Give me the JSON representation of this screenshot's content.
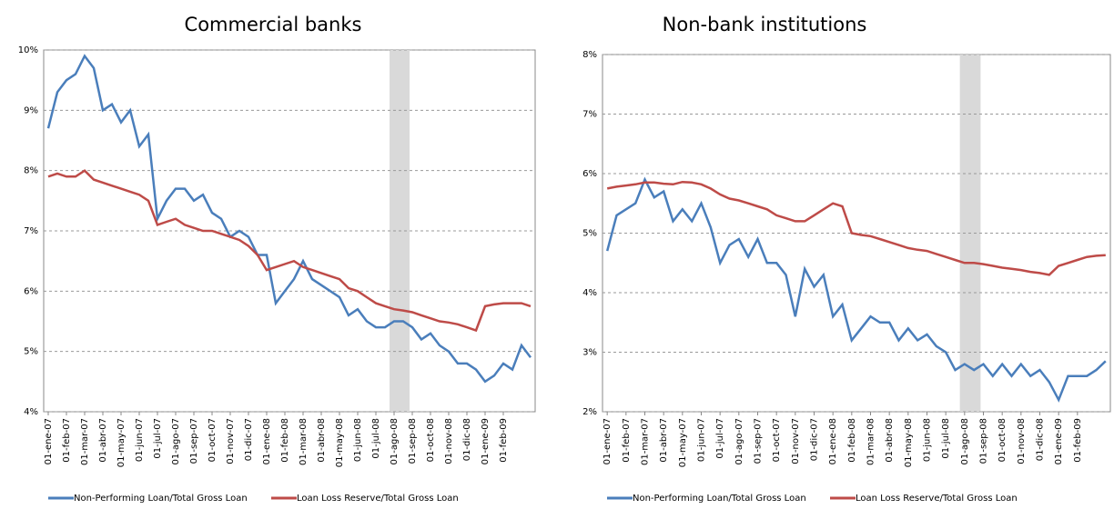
{
  "chart_data": [
    {
      "type": "line",
      "title": "Commercial banks",
      "categories": [
        "01-ene-07",
        null,
        "01-feb-07",
        null,
        "01-mar-07",
        null,
        "01-abr-07",
        null,
        "01-may-07",
        null,
        "01-jun-07",
        null,
        "01-jul-07",
        null,
        "01-ago-07",
        null,
        "01-sep-07",
        null,
        "01-oct-07",
        null,
        "01-nov-07",
        null,
        "01-dic-07",
        null,
        "01-ene-08",
        null,
        "01-feb-08",
        null,
        "01-mar-08",
        null,
        "01-abr-08",
        null,
        "01-may-08",
        null,
        "01-jun-08",
        null,
        "01-jul-08",
        null,
        "01-ago-08",
        null,
        "01-sep-08",
        null,
        "01-oct-08",
        null,
        "01-nov-08",
        null,
        "01-dic-08",
        null,
        "01-ene-09",
        null,
        "01-feb-09",
        null,
        null,
        null
      ],
      "ylim": [
        4,
        10
      ],
      "yticks": [
        {
          "value": 4,
          "label": "4%"
        },
        {
          "value": 5,
          "label": "5%"
        },
        {
          "value": 6,
          "label": "6%"
        },
        {
          "value": 7,
          "label": "7%"
        },
        {
          "value": 8,
          "label": "8%"
        },
        {
          "value": 9,
          "label": "9%"
        },
        {
          "value": 10,
          "label": "10%"
        }
      ],
      "grid": true,
      "legend": "bottom",
      "series": [
        {
          "name": "Non-Performing Loan/Total Gross Loan",
          "color": "#4a7ebb",
          "values": [
            8.7,
            9.3,
            9.5,
            9.6,
            9.9,
            9.7,
            9.0,
            9.1,
            8.8,
            9.0,
            8.4,
            8.6,
            7.2,
            7.5,
            7.7,
            7.7,
            7.5,
            7.6,
            7.3,
            7.2,
            6.9,
            7.0,
            6.9,
            6.6,
            6.6,
            5.8,
            6.0,
            6.2,
            6.5,
            6.2,
            6.1,
            6.0,
            5.9,
            5.6,
            5.7,
            5.5,
            5.4,
            5.4,
            5.5,
            5.5,
            5.4,
            5.2,
            5.3,
            5.1,
            5.0,
            4.8,
            4.8,
            4.7,
            4.5,
            4.6,
            4.8,
            4.7,
            5.1,
            4.9
          ]
        },
        {
          "name": "Loan Loss Reserve/Total Gross Loan",
          "color": "#be4b48",
          "values": [
            7.9,
            7.95,
            7.9,
            7.9,
            8.0,
            7.85,
            7.8,
            7.75,
            7.7,
            7.65,
            7.6,
            7.5,
            7.1,
            7.15,
            7.2,
            7.1,
            7.05,
            7.0,
            7.0,
            6.95,
            6.9,
            6.85,
            6.75,
            6.6,
            6.35,
            6.4,
            6.45,
            6.5,
            6.4,
            6.35,
            6.3,
            6.25,
            6.2,
            6.05,
            6.0,
            5.9,
            5.8,
            5.75,
            5.7,
            5.68,
            5.65,
            5.6,
            5.55,
            5.5,
            5.48,
            5.45,
            5.4,
            5.35,
            5.75,
            5.78,
            5.8,
            5.8,
            5.8,
            5.75
          ]
        }
      ]
    },
    {
      "type": "line",
      "title": "Non-bank institutions",
      "categories": [
        "01-ene-07",
        null,
        "01-feb-07",
        null,
        "01-mar-07",
        null,
        "01-abr-07",
        null,
        "01-may-07",
        null,
        "01-jun-07",
        null,
        "01-jul-07",
        null,
        "01-ago-07",
        null,
        "01-sep-07",
        null,
        "01-oct-07",
        null,
        "01-nov-07",
        null,
        "01-dic-07",
        null,
        "01-ene-08",
        null,
        "01-feb-08",
        null,
        "01-mar-08",
        null,
        "01-abr-08",
        null,
        "01-may-08",
        null,
        "01-jun-08",
        null,
        "01-jul-08",
        null,
        "01-ago-08",
        null,
        "01-sep-08",
        null,
        "01-oct-08",
        null,
        "01-nov-08",
        null,
        "01-dic-08",
        null,
        "01-ene-09",
        null,
        "01-feb-09",
        null,
        null,
        null
      ],
      "ylim": [
        2,
        8
      ],
      "yticks": [
        {
          "value": 2,
          "label": "2%"
        },
        {
          "value": 3,
          "label": "3%"
        },
        {
          "value": 4,
          "label": "4%"
        },
        {
          "value": 5,
          "label": "5%"
        },
        {
          "value": 6,
          "label": "6%"
        },
        {
          "value": 7,
          "label": "7%"
        },
        {
          "value": 8,
          "label": "8%"
        }
      ],
      "grid": true,
      "legend": "bottom",
      "series": [
        {
          "name": "Non-Performing Loan/Total Gross Loan",
          "color": "#4a7ebb",
          "values": [
            4.7,
            5.3,
            5.4,
            5.5,
            5.9,
            5.6,
            5.7,
            5.2,
            5.4,
            5.2,
            5.5,
            5.1,
            4.5,
            4.8,
            4.9,
            4.6,
            4.9,
            4.5,
            4.5,
            4.3,
            3.6,
            4.4,
            4.1,
            4.3,
            3.6,
            3.8,
            3.2,
            3.4,
            3.6,
            3.5,
            3.5,
            3.2,
            3.4,
            3.2,
            3.3,
            3.1,
            3.0,
            2.7,
            2.8,
            2.7,
            2.8,
            2.6,
            2.8,
            2.6,
            2.8,
            2.6,
            2.7,
            2.5,
            2.2,
            2.6,
            2.6,
            2.6,
            2.7,
            2.85
          ]
        },
        {
          "name": "Loan Loss Reserve/Total Gross Loan",
          "color": "#be4b48",
          "values": [
            5.75,
            5.78,
            5.8,
            5.82,
            5.85,
            5.85,
            5.83,
            5.82,
            5.86,
            5.85,
            5.82,
            5.75,
            5.65,
            5.58,
            5.55,
            5.5,
            5.45,
            5.4,
            5.3,
            5.25,
            5.2,
            5.2,
            5.3,
            5.4,
            5.5,
            5.45,
            5.0,
            4.97,
            4.95,
            4.9,
            4.85,
            4.8,
            4.75,
            4.72,
            4.7,
            4.65,
            4.6,
            4.55,
            4.5,
            4.5,
            4.48,
            4.45,
            4.42,
            4.4,
            4.38,
            4.35,
            4.33,
            4.3,
            4.45,
            4.5,
            4.55,
            4.6,
            4.62,
            4.63
          ]
        }
      ]
    }
  ]
}
